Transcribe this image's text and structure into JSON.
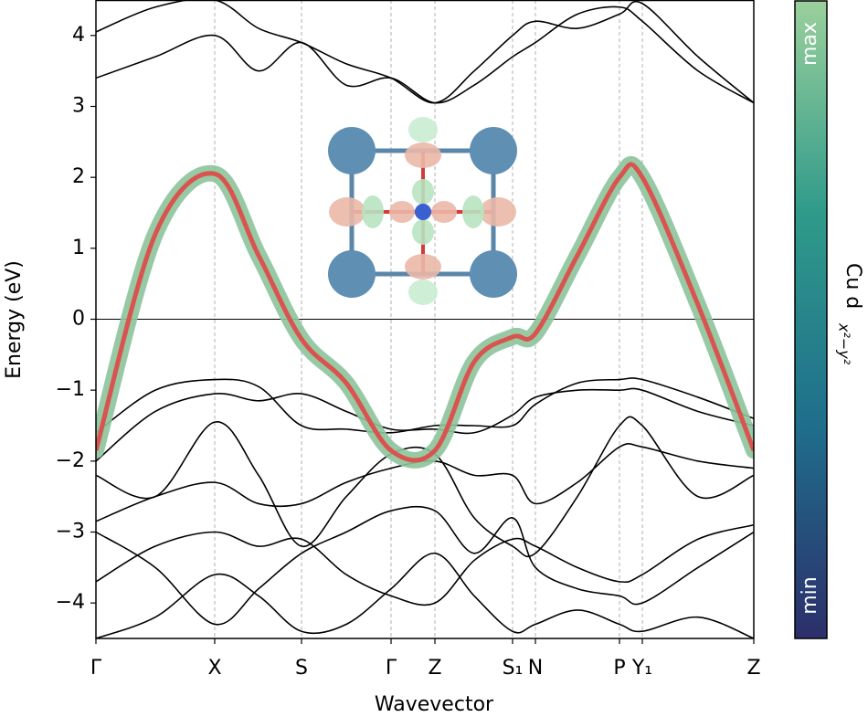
{
  "chart_data": {
    "type": "line",
    "x_label": "Wavevector",
    "y_label": "Energy (eV)",
    "x": [
      0,
      0.65,
      1.3,
      1.78,
      2.25,
      2.74,
      3.23,
      3.71,
      4.14,
      4.56,
      4.81,
      5.27,
      5.73,
      5.98,
      6.59,
      7.2
    ],
    "xlim": [
      0,
      7.2
    ],
    "xticks": [
      {
        "value": 0,
        "label": "Γ"
      },
      {
        "value": 1.3,
        "label": "X"
      },
      {
        "value": 2.25,
        "label": "S"
      },
      {
        "value": 3.23,
        "label": "Γ"
      },
      {
        "value": 3.71,
        "label": "Z"
      },
      {
        "value": 4.56,
        "label": "S₁"
      },
      {
        "value": 4.81,
        "label": "N"
      },
      {
        "value": 5.73,
        "label": "P"
      },
      {
        "value": 5.98,
        "label": "Y₁"
      },
      {
        "value": 7.2,
        "label": "Z"
      }
    ],
    "ylim": [
      -4.5,
      4.5
    ],
    "yticks": [
      {
        "value": -4,
        "label": "−4"
      },
      {
        "value": -3,
        "label": "−3"
      },
      {
        "value": -2,
        "label": "−2"
      },
      {
        "value": -1,
        "label": "−1"
      },
      0,
      1,
      2,
      3,
      4
    ],
    "hline": 0,
    "grid": true,
    "series": [
      {
        "color": "#000000",
        "values": [
          4.05,
          4.4,
          4.5,
          4.1,
          3.9,
          3.6,
          3.4,
          3.05,
          3.5,
          4.0,
          4.2,
          4.1,
          4.3,
          4.45,
          3.7,
          3.05
        ]
      },
      {
        "color": "#000000",
        "values": [
          3.4,
          3.7,
          4.0,
          3.5,
          3.9,
          3.3,
          3.4,
          3.05,
          3.3,
          3.7,
          3.9,
          4.3,
          4.4,
          4.2,
          3.5,
          3.05
        ]
      },
      {
        "color": "#000000",
        "values": [
          -1.6,
          -1.0,
          -0.85,
          -0.95,
          -1.5,
          -1.55,
          -1.6,
          -1.5,
          -1.5,
          -1.5,
          -1.2,
          -0.9,
          -0.85,
          -0.85,
          -1.1,
          -1.4
        ]
      },
      {
        "color": "#000000",
        "values": [
          -2.0,
          -1.3,
          -1.05,
          -1.15,
          -1.05,
          -1.3,
          -1.55,
          -1.55,
          -1.6,
          -1.35,
          -1.1,
          -1.0,
          -1.0,
          -1.0,
          -1.3,
          -1.5
        ]
      },
      {
        "color": "#000000",
        "values": [
          -2.2,
          -2.5,
          -1.45,
          -2.2,
          -3.2,
          -2.5,
          -1.9,
          -1.9,
          -2.8,
          -3.2,
          -3.3,
          -2.5,
          -1.5,
          -1.5,
          -2.5,
          -2.2
        ]
      },
      {
        "color": "#000000",
        "values": [
          -2.85,
          -2.5,
          -2.3,
          -2.6,
          -2.6,
          -2.3,
          -2.1,
          -2.0,
          -2.2,
          -2.2,
          -2.6,
          -2.3,
          -1.8,
          -1.8,
          -2.0,
          -2.1
        ]
      },
      {
        "color": "#000000",
        "values": [
          -3.7,
          -3.2,
          -3.0,
          -3.2,
          -3.1,
          -3.6,
          -3.9,
          -4.0,
          -3.4,
          -3.1,
          -3.2,
          -3.5,
          -3.7,
          -3.6,
          -3.1,
          -2.9
        ]
      },
      {
        "color": "#000000",
        "values": [
          -3.0,
          -3.5,
          -4.3,
          -3.8,
          -3.3,
          -3.0,
          -2.7,
          -2.7,
          -3.3,
          -2.8,
          -3.5,
          -3.8,
          -3.9,
          -4.0,
          -3.5,
          -3.0
        ]
      },
      {
        "color": "#000000",
        "values": [
          -4.5,
          -4.2,
          -3.6,
          -3.9,
          -4.4,
          -4.3,
          -3.8,
          -3.3,
          -3.9,
          -4.4,
          -4.3,
          -4.1,
          -4.3,
          -4.4,
          -4.2,
          -4.5
        ]
      },
      {
        "color": "#d9534f",
        "glow": "#8cc49a",
        "values": [
          -1.85,
          1.2,
          2.05,
          0.9,
          -0.28,
          -0.9,
          -1.85,
          -1.85,
          -0.6,
          -0.25,
          -0.2,
          0.9,
          2.0,
          2.0,
          0.2,
          -1.85
        ]
      }
    ],
    "colorbar_label": "Cu d",
    "colorbar_label_sub": "x²−y²",
    "colorbar_max": "max",
    "colorbar_min": "min",
    "colorbar_colors": [
      "#2c2f6b",
      "#1f6e8c",
      "#2f9a8a",
      "#9bd09c"
    ]
  }
}
